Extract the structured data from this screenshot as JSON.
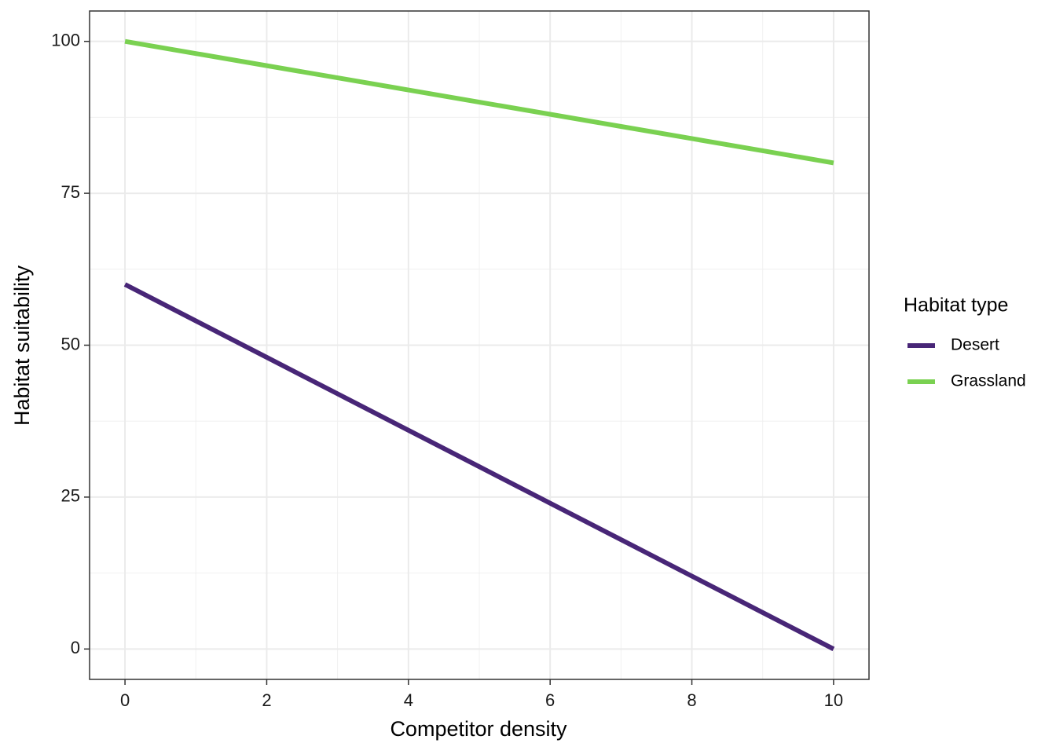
{
  "chart_data": {
    "type": "line",
    "x_label": "Competitor density",
    "y_label": "Habitat suitability",
    "x": [
      0,
      1,
      2,
      3,
      4,
      5,
      6,
      7,
      8,
      9,
      10
    ],
    "series": [
      {
        "name": "Desert",
        "color": "#482677",
        "values": [
          60,
          54,
          48,
          42,
          36,
          30,
          24,
          18,
          12,
          6,
          0
        ]
      },
      {
        "name": "Grassland",
        "color": "#7ad151",
        "values": [
          100,
          98,
          96,
          94,
          92,
          90,
          88,
          86,
          84,
          82,
          80
        ]
      }
    ],
    "xlim": [
      -0.5,
      10.5
    ],
    "xticks": [
      0,
      2,
      4,
      6,
      8,
      10
    ],
    "ylim": [
      -5,
      105
    ],
    "yticks": [
      0,
      25,
      50,
      75,
      100
    ],
    "grid": true,
    "legend_title": "Habitat type",
    "legend_position": "right"
  }
}
